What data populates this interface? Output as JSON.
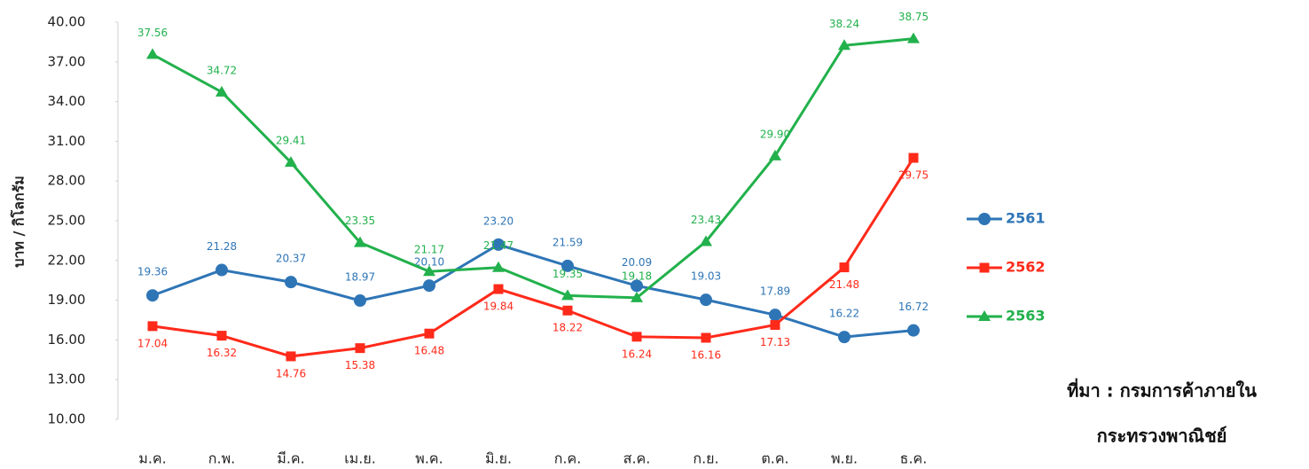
{
  "chart_data": {
    "type": "line",
    "y_axis_label": "บาท / กิโลกรัม",
    "categories": [
      "ม.ค.",
      "ก.พ.",
      "มี.ค.",
      "เม.ย.",
      "พ.ค.",
      "มิ.ย.",
      "ก.ค.",
      "ส.ค.",
      "ก.ย.",
      "ต.ค.",
      "พ.ย.",
      "ธ.ค."
    ],
    "series": [
      {
        "name": "2561",
        "color": "#2e75b6",
        "marker": "circle",
        "values": [
          19.36,
          21.28,
          20.37,
          18.97,
          20.1,
          23.2,
          21.59,
          20.09,
          19.03,
          17.89,
          16.22,
          16.72
        ],
        "value_labels": [
          "19.36",
          "21.28",
          "20.37",
          "18.97",
          "20.10",
          "23.20",
          "21.59",
          "20.09",
          "19.03",
          "17.89",
          "16.22",
          "16.72"
        ]
      },
      {
        "name": "2562",
        "color": "#ff2a1a",
        "marker": "square",
        "values": [
          17.04,
          16.32,
          14.76,
          15.38,
          16.48,
          19.84,
          18.22,
          16.24,
          16.16,
          17.13,
          21.48,
          29.75
        ],
        "value_labels": [
          "17.04",
          "16.32",
          "14.76",
          "15.38",
          "16.48",
          "19.84",
          "18.22",
          "16.24",
          "16.16",
          "17.13",
          "21.48",
          "29.75"
        ]
      },
      {
        "name": "2563",
        "color": "#22b14c",
        "marker": "triangle",
        "values": [
          37.56,
          34.72,
          29.41,
          23.35,
          21.17,
          21.47,
          19.35,
          19.18,
          23.43,
          29.9,
          38.24,
          38.75
        ],
        "value_labels": [
          "37.56",
          "34.72",
          "29.41",
          "23.35",
          "21.17",
          "21.47",
          "19.35",
          "19.18",
          "23.43",
          "29.90",
          "38.24",
          "38.75"
        ]
      }
    ],
    "ylim": [
      10,
      40
    ],
    "yticks": [
      {
        "value": 10,
        "label": "10.00"
      },
      {
        "value": 13,
        "label": "13.00"
      },
      {
        "value": 16,
        "label": "16.00"
      },
      {
        "value": 19,
        "label": "19.00"
      },
      {
        "value": 22,
        "label": "22.00"
      },
      {
        "value": 25,
        "label": "25.00"
      },
      {
        "value": 28,
        "label": "28.00"
      },
      {
        "value": 31,
        "label": "31.00"
      },
      {
        "value": 34,
        "label": "34.00"
      },
      {
        "value": 37,
        "label": "37.00"
      },
      {
        "value": 40,
        "label": "40.00"
      }
    ],
    "grid": false,
    "legend": "right",
    "source": [
      "ที่มา : กรมการค้าภายใน",
      "กระทรวงพาณิชย์"
    ]
  }
}
